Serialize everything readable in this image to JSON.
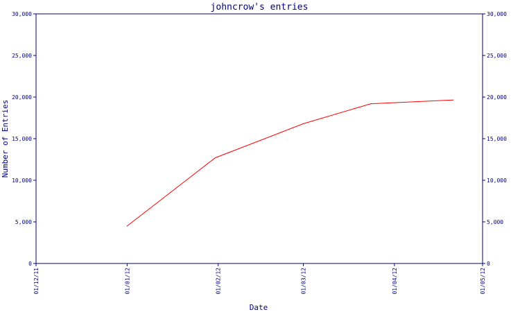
{
  "colors": {
    "axis": "#000080",
    "series": "#ff0000",
    "background": "#ffffff"
  },
  "chart_data": {
    "type": "line",
    "title": "johncrow's entries",
    "xlabel": "Date",
    "ylabel": "Number of Entries",
    "x_axis": {
      "kind": "date",
      "range": [
        "2011-12-01",
        "2012-05-01"
      ],
      "ticks": [
        {
          "date": "2011-12-01",
          "label": "01/12/11"
        },
        {
          "date": "2012-01-01",
          "label": "01/01/12"
        },
        {
          "date": "2012-02-01",
          "label": "01/02/12"
        },
        {
          "date": "2012-03-01",
          "label": "01/03/12"
        },
        {
          "date": "2012-04-01",
          "label": "01/04/12"
        },
        {
          "date": "2012-05-01",
          "label": "01/05/12"
        }
      ]
    },
    "y_axis": {
      "range": [
        0,
        30000
      ],
      "ticks": [
        {
          "value": 0,
          "label": "0"
        },
        {
          "value": 5000,
          "label": "5,000"
        },
        {
          "value": 10000,
          "label": "10,000"
        },
        {
          "value": 15000,
          "label": "15,000"
        },
        {
          "value": 20000,
          "label": "20,000"
        },
        {
          "value": 25000,
          "label": "25,000"
        },
        {
          "value": 30000,
          "label": "30,000"
        }
      ],
      "mirrored_right": true
    },
    "grid": false,
    "legend": "none",
    "series": [
      {
        "color": "#ff0000",
        "points": [
          {
            "x": "2012-01-01",
            "y": 4500
          },
          {
            "x": "2012-01-31",
            "y": 12700
          },
          {
            "x": "2012-03-01",
            "y": 16800
          },
          {
            "x": "2012-03-24",
            "y": 19200
          },
          {
            "x": "2012-04-21",
            "y": 19650
          }
        ]
      }
    ]
  }
}
